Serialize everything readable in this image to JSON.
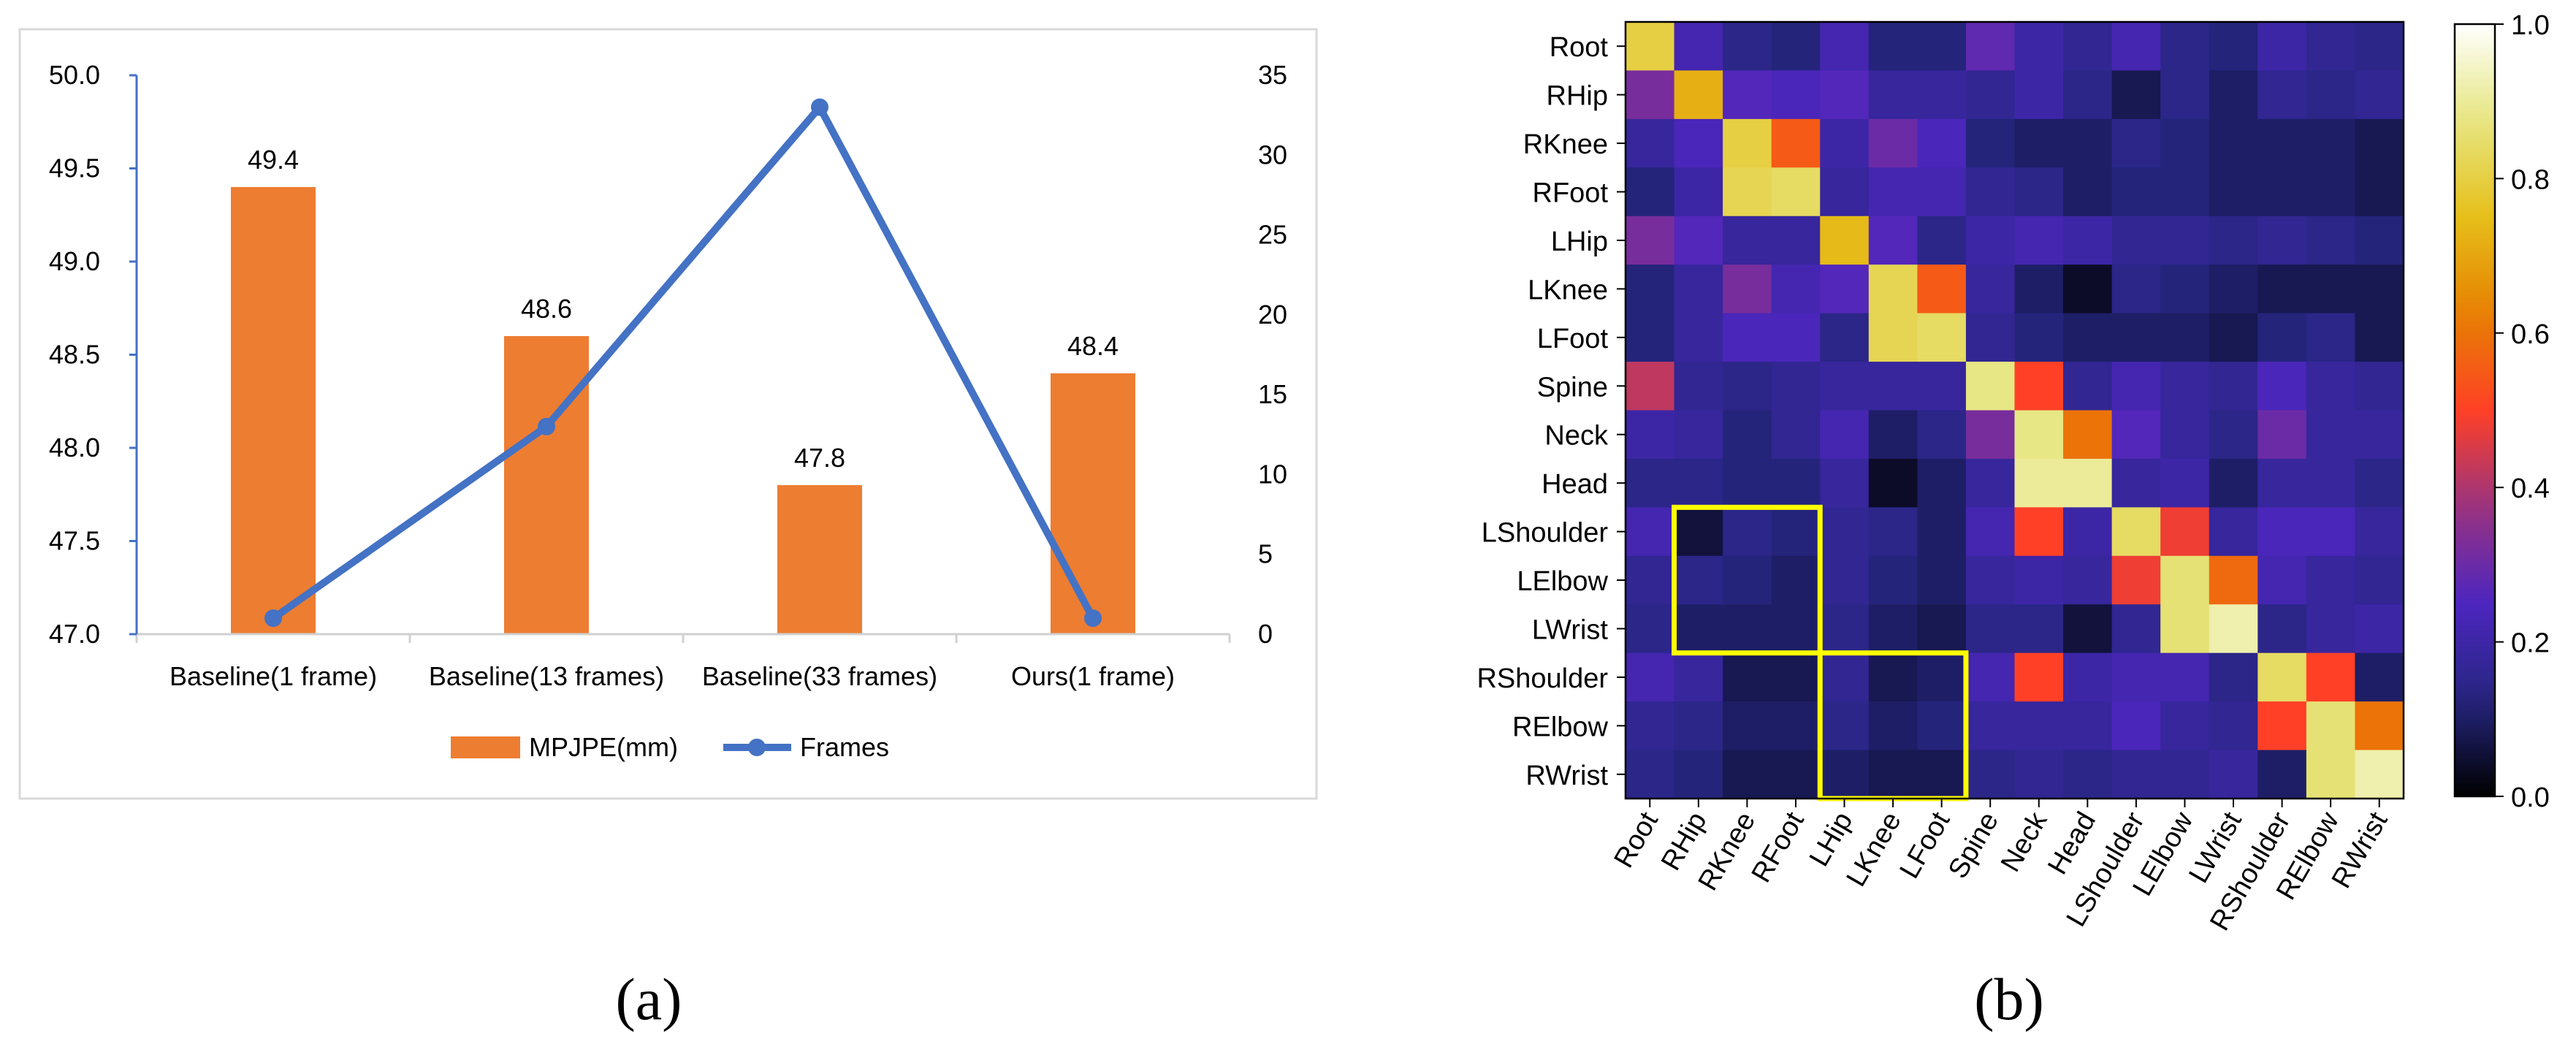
{
  "chart_data": [
    {
      "panel_label": "(a)",
      "type": "bar",
      "categories": [
        "Baseline(1 frame)",
        "Baseline(13 frames)",
        "Baseline(33 frames)",
        "Ours(1 frame)"
      ],
      "series": [
        {
          "name": "MPJPE(mm)",
          "type": "bar",
          "axis": "left",
          "values": [
            49.4,
            48.6,
            47.8,
            48.4
          ],
          "data_labels": [
            "49.4",
            "48.6",
            "47.8",
            "48.4"
          ],
          "color": "#ED7D31"
        },
        {
          "name": "Frames",
          "type": "line",
          "axis": "right",
          "values": [
            1,
            13,
            33,
            1
          ],
          "color": "#4472C4"
        }
      ],
      "y_left": {
        "range": [
          47.0,
          50.0
        ],
        "ticks": [
          "47.0",
          "47.5",
          "48.0",
          "48.5",
          "49.0",
          "49.5",
          "50.0"
        ]
      },
      "y_right": {
        "range": [
          0,
          35
        ],
        "ticks": [
          "0",
          "5",
          "10",
          "15",
          "20",
          "25",
          "30",
          "35"
        ]
      },
      "legend_position": "bottom",
      "grid": false
    },
    {
      "panel_label": "(b)",
      "type": "heatmap",
      "labels": [
        "Root",
        "RHip",
        "RKnee",
        "RFoot",
        "LHip",
        "LKnee",
        "LFoot",
        "Spine",
        "Neck",
        "Head",
        "LShoulder",
        "LElbow",
        "LWrist",
        "RShoulder",
        "RElbow",
        "RWrist"
      ],
      "values": [
        [
          0.8,
          0.22,
          0.14,
          0.12,
          0.22,
          0.12,
          0.12,
          0.28,
          0.2,
          0.16,
          0.22,
          0.14,
          0.12,
          0.2,
          0.16,
          0.14
        ],
        [
          0.32,
          0.72,
          0.26,
          0.24,
          0.26,
          0.18,
          0.18,
          0.16,
          0.2,
          0.14,
          0.08,
          0.14,
          0.1,
          0.16,
          0.14,
          0.16
        ],
        [
          0.18,
          0.24,
          0.8,
          0.55,
          0.2,
          0.3,
          0.24,
          0.12,
          0.1,
          0.1,
          0.14,
          0.12,
          0.1,
          0.1,
          0.1,
          0.08
        ],
        [
          0.12,
          0.2,
          0.82,
          0.84,
          0.18,
          0.22,
          0.22,
          0.16,
          0.14,
          0.1,
          0.12,
          0.12,
          0.1,
          0.1,
          0.1,
          0.08
        ],
        [
          0.32,
          0.26,
          0.18,
          0.18,
          0.74,
          0.26,
          0.14,
          0.2,
          0.22,
          0.2,
          0.16,
          0.16,
          0.14,
          0.16,
          0.14,
          0.12
        ],
        [
          0.12,
          0.18,
          0.32,
          0.22,
          0.26,
          0.82,
          0.55,
          0.18,
          0.1,
          0.04,
          0.14,
          0.12,
          0.1,
          0.08,
          0.08,
          0.08
        ],
        [
          0.12,
          0.18,
          0.24,
          0.24,
          0.14,
          0.82,
          0.84,
          0.16,
          0.12,
          0.1,
          0.1,
          0.1,
          0.08,
          0.12,
          0.14,
          0.08
        ],
        [
          0.42,
          0.16,
          0.14,
          0.16,
          0.18,
          0.18,
          0.18,
          0.88,
          0.5,
          0.16,
          0.22,
          0.18,
          0.16,
          0.24,
          0.18,
          0.16
        ],
        [
          0.2,
          0.18,
          0.12,
          0.16,
          0.22,
          0.1,
          0.14,
          0.32,
          0.88,
          0.6,
          0.26,
          0.18,
          0.14,
          0.3,
          0.18,
          0.18
        ],
        [
          0.14,
          0.14,
          0.12,
          0.12,
          0.18,
          0.04,
          0.1,
          0.18,
          0.9,
          0.9,
          0.18,
          0.2,
          0.1,
          0.18,
          0.18,
          0.14
        ],
        [
          0.22,
          0.06,
          0.14,
          0.12,
          0.16,
          0.14,
          0.1,
          0.22,
          0.5,
          0.2,
          0.84,
          0.48,
          0.18,
          0.24,
          0.24,
          0.18
        ],
        [
          0.16,
          0.14,
          0.12,
          0.1,
          0.16,
          0.12,
          0.1,
          0.18,
          0.2,
          0.18,
          0.48,
          0.86,
          0.58,
          0.22,
          0.18,
          0.16
        ],
        [
          0.14,
          0.1,
          0.1,
          0.1,
          0.14,
          0.1,
          0.08,
          0.14,
          0.14,
          0.06,
          0.16,
          0.86,
          0.92,
          0.14,
          0.18,
          0.2
        ],
        [
          0.22,
          0.18,
          0.08,
          0.08,
          0.16,
          0.08,
          0.1,
          0.22,
          0.5,
          0.2,
          0.22,
          0.22,
          0.14,
          0.84,
          0.5,
          0.1
        ],
        [
          0.16,
          0.14,
          0.1,
          0.1,
          0.14,
          0.1,
          0.12,
          0.18,
          0.18,
          0.18,
          0.24,
          0.18,
          0.16,
          0.5,
          0.86,
          0.6
        ],
        [
          0.14,
          0.12,
          0.08,
          0.08,
          0.1,
          0.08,
          0.08,
          0.14,
          0.16,
          0.14,
          0.16,
          0.16,
          0.18,
          0.1,
          0.86,
          0.92
        ]
      ],
      "colorbar": {
        "range": [
          0.0,
          1.0
        ],
        "ticks": [
          "0.0",
          "0.2",
          "0.4",
          "0.6",
          "0.8",
          "1.0"
        ],
        "colormap": "CMRmap"
      },
      "highlight_boxes": [
        {
          "rows": [
            "LShoulder",
            "LWrist"
          ],
          "cols": [
            "RHip",
            "RFoot"
          ],
          "color": "#FFFF00"
        },
        {
          "rows": [
            "RShoulder",
            "RWrist"
          ],
          "cols": [
            "LHip",
            "LFoot"
          ],
          "color": "#FFFF00"
        }
      ]
    }
  ]
}
